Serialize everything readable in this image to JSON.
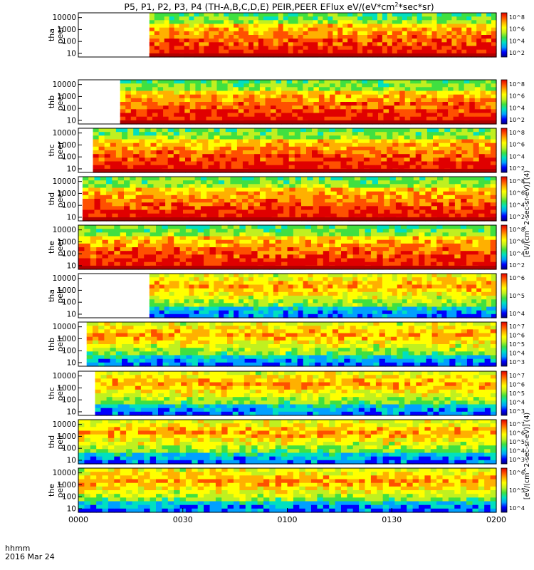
{
  "title": {
    "main": "P5, P1, P2, P3, P4 (TH-A,B,C,D,E) PEIR,PEER EFlux eV/(eV*cm",
    "sup": "2",
    "rest": "*sec*sr)"
  },
  "time_label": "hhmm",
  "date_label": "2016 Mar 24",
  "time_ticks": [
    "0000",
    "0030",
    "0100",
    "0130",
    "0200"
  ],
  "energy_ticks": [
    "10",
    "100",
    "1000",
    "10000"
  ],
  "colorbar_label_peer": "[eV/(cm^2-sec-sr-eV)] (4)",
  "colorbar_label_peir": "[eV/(cm^2-sec-sr-eV)] (4)",
  "palette": [
    "#000080",
    "#0000ff",
    "#00a0ff",
    "#00e0c0",
    "#40e040",
    "#c0f020",
    "#ffff00",
    "#ffb000",
    "#ff5000",
    "#e00000"
  ],
  "chart_data": {
    "type": "heatmap",
    "x_range": [
      "0000",
      "0200"
    ],
    "y_scale": "log",
    "y_range_eV": [
      5,
      25000
    ],
    "panels": [
      {
        "probe": "tha",
        "product": "peer",
        "ylabel_top": "tha",
        "ylabel_bottom": "peer",
        "cb_ticks": [
          "10^2",
          "10^4",
          "10^6",
          "10^8"
        ]
      },
      {
        "probe": "thb",
        "product": "peer",
        "ylabel_top": "thb",
        "ylabel_bottom": "peer",
        "cb_ticks": [
          "10^2",
          "10^4",
          "10^6",
          "10^8"
        ]
      },
      {
        "probe": "thc",
        "product": "peer",
        "ylabel_top": "thc",
        "ylabel_bottom": "peer",
        "cb_ticks": [
          "10^2",
          "10^4",
          "10^6",
          "10^8"
        ]
      },
      {
        "probe": "thd",
        "product": "peer",
        "ylabel_top": "thd",
        "ylabel_bottom": "peer",
        "cb_ticks": [
          "10^2",
          "10^4",
          "10^6",
          "10^8"
        ]
      },
      {
        "probe": "the",
        "product": "peer",
        "ylabel_top": "the",
        "ylabel_bottom": "peer",
        "cb_ticks": [
          "10^2",
          "10^4",
          "10^6",
          "10^8"
        ]
      },
      {
        "probe": "tha",
        "product": "peir",
        "ylabel_top": "tha",
        "ylabel_bottom": "peir",
        "cb_ticks": [
          "10^4",
          "10^5",
          "10^6"
        ]
      },
      {
        "probe": "thb",
        "product": "peir",
        "ylabel_top": "thb",
        "ylabel_bottom": "peir",
        "cb_ticks": [
          "10^3",
          "10^4",
          "10^5",
          "10^6",
          "10^7"
        ]
      },
      {
        "probe": "thc",
        "product": "peir",
        "ylabel_top": "thc",
        "ylabel_bottom": "peir",
        "cb_ticks": [
          "10^3",
          "10^4",
          "10^5",
          "10^6",
          "10^7"
        ]
      },
      {
        "probe": "thd",
        "product": "peir",
        "ylabel_top": "thd",
        "ylabel_bottom": "peir",
        "cb_ticks": [
          "10^3",
          "10^4",
          "10^5",
          "10^6",
          "10^7"
        ]
      },
      {
        "probe": "the",
        "product": "peir",
        "ylabel_top": "the",
        "ylabel_bottom": "peir",
        "cb_ticks": [
          "10^4",
          "10^5",
          "10^6"
        ]
      }
    ]
  }
}
